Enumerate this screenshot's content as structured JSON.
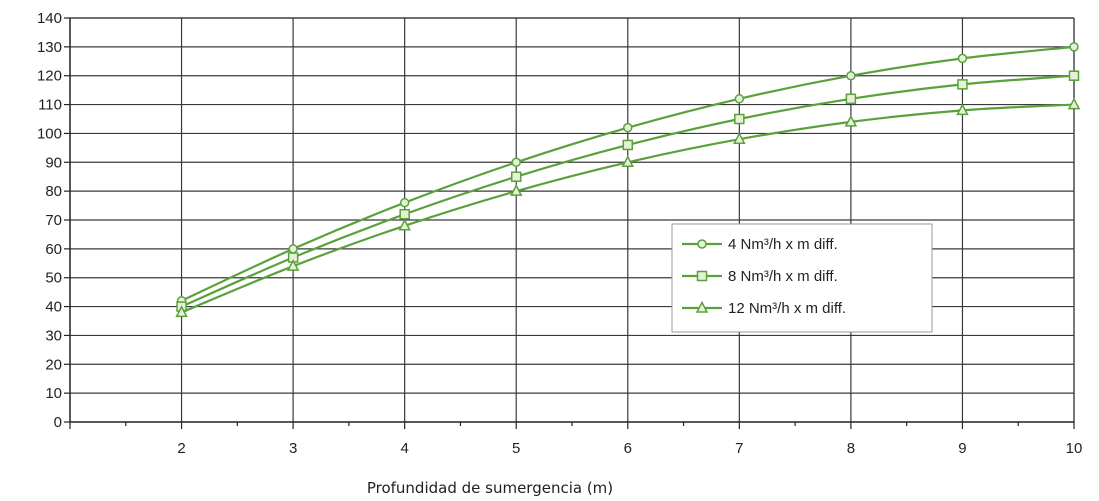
{
  "chart_data": {
    "type": "line",
    "title": "",
    "xlabel": "Profundidad de sumergencia (m)",
    "ylabel": "",
    "xlim": [
      1,
      10
    ],
    "ylim": [
      0,
      140
    ],
    "x_ticks": [
      2,
      3,
      4,
      5,
      6,
      7,
      8,
      9,
      10
    ],
    "y_ticks": [
      0,
      10,
      20,
      30,
      40,
      50,
      60,
      70,
      80,
      90,
      100,
      110,
      120,
      130,
      140
    ],
    "grid": true,
    "legend_position": "center-right",
    "line_color": "#5aa13c",
    "x": [
      2,
      3,
      4,
      5,
      6,
      7,
      8,
      9,
      10
    ],
    "series": [
      {
        "name": "4 Nm³/h x m diff.",
        "marker": "circle",
        "values": [
          42,
          60,
          76,
          90,
          102,
          112,
          120,
          126,
          130
        ]
      },
      {
        "name": "8 Nm³/h x m diff.",
        "marker": "square",
        "values": [
          40,
          57,
          72,
          85,
          96,
          105,
          112,
          117,
          120
        ]
      },
      {
        "name": "12 Nm³/h x m diff.",
        "marker": "triangle",
        "values": [
          38,
          54,
          68,
          80,
          90,
          98,
          104,
          108,
          110
        ]
      }
    ]
  }
}
